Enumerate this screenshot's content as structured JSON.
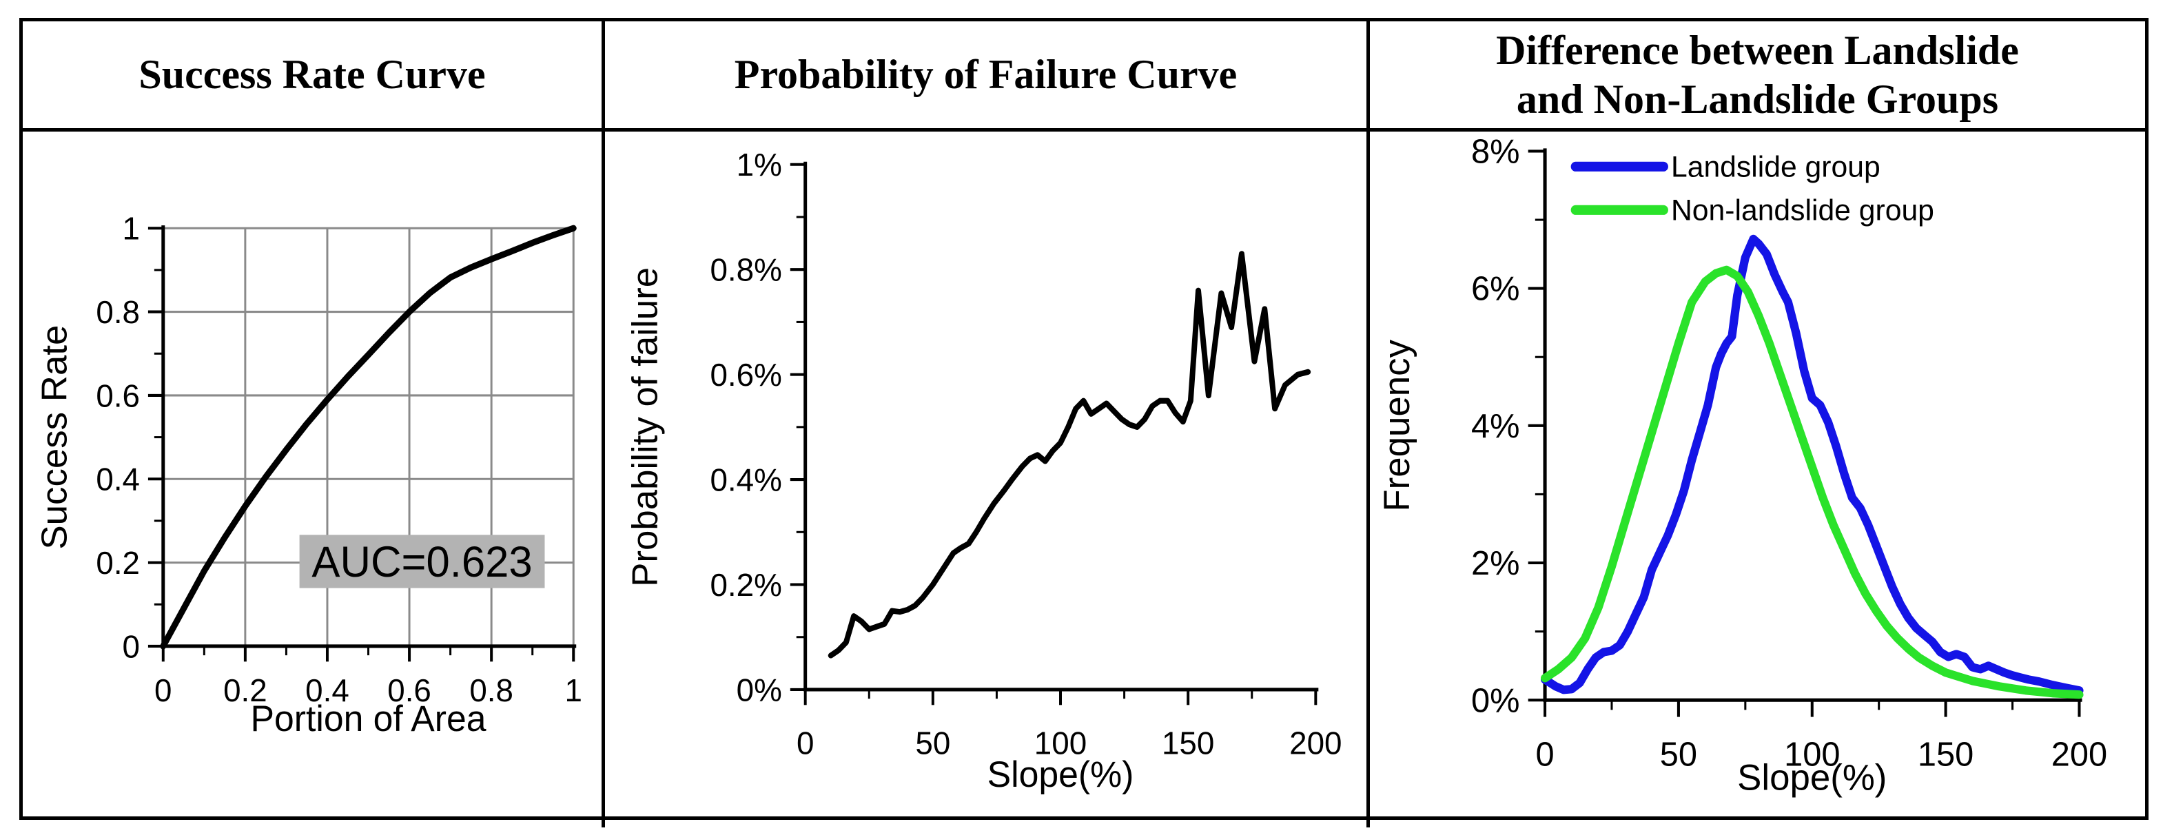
{
  "figure": {
    "panels": [
      {
        "title": "Success Rate Curve"
      },
      {
        "title": "Probability of Failure Curve"
      },
      {
        "title": "Difference between Landslide\nand Non-Landslide Groups"
      }
    ]
  },
  "colors": {
    "axis": "#000000",
    "grid": "#8a8a8a",
    "annotation_bg": "#b3b3b3",
    "landslide_blue": "#1414e6",
    "non_landslide_green": "#2ae22a"
  },
  "chart_data": [
    {
      "type": "line",
      "title": "Success Rate Curve",
      "xlabel": "Portion of Area",
      "ylabel": "Success Rate",
      "xlim": [
        0,
        1
      ],
      "ylim": [
        0,
        1
      ],
      "grid": true,
      "grid_color": "#8a8a8a",
      "x_ticks": {
        "values": [
          0,
          0.2,
          0.4,
          0.6,
          0.8,
          1
        ],
        "labels": [
          "0",
          "0.2",
          "0.4",
          "0.6",
          "0.8",
          "1"
        ]
      },
      "y_ticks": {
        "values": [
          0,
          0.2,
          0.4,
          0.6,
          0.8,
          1
        ],
        "labels": [
          "0",
          "0.2",
          "0.4",
          "0.6",
          "0.8",
          "1"
        ]
      },
      "x_minor": [
        0.1,
        0.3,
        0.5,
        0.7,
        0.9
      ],
      "y_minor": [
        0.1,
        0.3,
        0.5,
        0.7,
        0.9
      ],
      "annotation": {
        "text": "AUC=0.623",
        "bg": "#b3b3b3"
      },
      "series": [
        {
          "name": "Success rate curve",
          "color": "#000000",
          "line_width": 9,
          "points": [
            [
              0,
              0
            ],
            [
              0.05,
              0.09
            ],
            [
              0.1,
              0.18
            ],
            [
              0.15,
              0.26
            ],
            [
              0.2,
              0.335
            ],
            [
              0.25,
              0.405
            ],
            [
              0.3,
              0.47
            ],
            [
              0.35,
              0.532
            ],
            [
              0.4,
              0.59
            ],
            [
              0.45,
              0.645
            ],
            [
              0.5,
              0.697
            ],
            [
              0.55,
              0.75
            ],
            [
              0.6,
              0.8
            ],
            [
              0.65,
              0.845
            ],
            [
              0.7,
              0.882
            ],
            [
              0.75,
              0.906
            ],
            [
              0.8,
              0.926
            ],
            [
              0.85,
              0.945
            ],
            [
              0.9,
              0.965
            ],
            [
              0.95,
              0.983
            ],
            [
              1,
              1
            ]
          ]
        }
      ]
    },
    {
      "type": "line",
      "title": "Probability of Failure Curve",
      "xlabel": "Slope(%)",
      "ylabel": "Probability of failure",
      "xlim": [
        0,
        200
      ],
      "ylim": [
        0,
        1
      ],
      "grid": false,
      "x_ticks": {
        "values": [
          0,
          50,
          100,
          150,
          200
        ],
        "labels": [
          "0",
          "50",
          "100",
          "150",
          "200"
        ]
      },
      "y_ticks": {
        "values": [
          0,
          0.2,
          0.4,
          0.6,
          0.8,
          1
        ],
        "labels": [
          "0%",
          "0.2%",
          "0.4%",
          "0.6%",
          "0.8%",
          "1%"
        ]
      },
      "x_minor": [
        25,
        75,
        125,
        175
      ],
      "y_minor": [
        0.1,
        0.3,
        0.5,
        0.7,
        0.9
      ],
      "series": [
        {
          "name": "Probability of failure",
          "color": "#000000",
          "line_width": 8,
          "points": [
            [
              10,
              0.065
            ],
            [
              13,
              0.075
            ],
            [
              16,
              0.09
            ],
            [
              19,
              0.14
            ],
            [
              22,
              0.13
            ],
            [
              25,
              0.115
            ],
            [
              28,
              0.12
            ],
            [
              31,
              0.125
            ],
            [
              34,
              0.15
            ],
            [
              37,
              0.148
            ],
            [
              40,
              0.152
            ],
            [
              43,
              0.16
            ],
            [
              46,
              0.175
            ],
            [
              50,
              0.2
            ],
            [
              54,
              0.23
            ],
            [
              58,
              0.26
            ],
            [
              61,
              0.27
            ],
            [
              64,
              0.278
            ],
            [
              67,
              0.3
            ],
            [
              70,
              0.325
            ],
            [
              74,
              0.355
            ],
            [
              78,
              0.38
            ],
            [
              81,
              0.4
            ],
            [
              85,
              0.425
            ],
            [
              88,
              0.44
            ],
            [
              91,
              0.447
            ],
            [
              94,
              0.435
            ],
            [
              97,
              0.455
            ],
            [
              100,
              0.47
            ],
            [
              103,
              0.5
            ],
            [
              106,
              0.535
            ],
            [
              109,
              0.55
            ],
            [
              112,
              0.525
            ],
            [
              115,
              0.535
            ],
            [
              118,
              0.545
            ],
            [
              121,
              0.53
            ],
            [
              124,
              0.515
            ],
            [
              127,
              0.505
            ],
            [
              130,
              0.5
            ],
            [
              133,
              0.515
            ],
            [
              136,
              0.54
            ],
            [
              139,
              0.55
            ],
            [
              142,
              0.55
            ],
            [
              145,
              0.527
            ],
            [
              148,
              0.51
            ],
            [
              151,
              0.55
            ],
            [
              154,
              0.76
            ],
            [
              158,
              0.56
            ],
            [
              163,
              0.755
            ],
            [
              167,
              0.69
            ],
            [
              171,
              0.83
            ],
            [
              176,
              0.625
            ],
            [
              180,
              0.725
            ],
            [
              184,
              0.535
            ],
            [
              188,
              0.58
            ],
            [
              193,
              0.6
            ],
            [
              197,
              0.605
            ]
          ]
        }
      ]
    },
    {
      "type": "line",
      "title": "Difference between Landslide and Non-Landslide Groups",
      "xlabel": "Slope(%)",
      "ylabel": "Frequency",
      "xlim": [
        0,
        200
      ],
      "ylim": [
        0,
        8
      ],
      "grid": false,
      "legend": {
        "position": "top-left"
      },
      "x_ticks": {
        "values": [
          0,
          50,
          100,
          150,
          200
        ],
        "labels": [
          "0",
          "50",
          "100",
          "150",
          "200"
        ]
      },
      "y_ticks": {
        "values": [
          0,
          2,
          4,
          6,
          8
        ],
        "labels": [
          "0%",
          "2%",
          "4%",
          "6%",
          "8%"
        ]
      },
      "x_minor": [
        25,
        75,
        125,
        175
      ],
      "y_minor": [
        1,
        3,
        5,
        7
      ],
      "series": [
        {
          "name": "Landslide group",
          "color": "#1414e6",
          "line_width": 12,
          "points": [
            [
              0,
              0.3
            ],
            [
              4,
              0.2
            ],
            [
              7,
              0.15
            ],
            [
              10,
              0.16
            ],
            [
              13,
              0.25
            ],
            [
              16,
              0.45
            ],
            [
              19,
              0.62
            ],
            [
              22,
              0.7
            ],
            [
              25,
              0.72
            ],
            [
              28,
              0.8
            ],
            [
              31,
              1.0
            ],
            [
              34,
              1.25
            ],
            [
              37,
              1.5
            ],
            [
              40,
              1.9
            ],
            [
              43,
              2.15
            ],
            [
              46,
              2.4
            ],
            [
              49,
              2.7
            ],
            [
              52,
              3.05
            ],
            [
              55,
              3.5
            ],
            [
              58,
              3.9
            ],
            [
              61,
              4.3
            ],
            [
              64,
              4.85
            ],
            [
              66,
              5.05
            ],
            [
              68,
              5.2
            ],
            [
              70,
              5.3
            ],
            [
              72,
              5.9
            ],
            [
              75,
              6.45
            ],
            [
              78,
              6.72
            ],
            [
              80,
              6.65
            ],
            [
              83,
              6.5
            ],
            [
              86,
              6.2
            ],
            [
              89,
              5.95
            ],
            [
              91,
              5.8
            ],
            [
              94,
              5.35
            ],
            [
              97,
              4.8
            ],
            [
              100,
              4.4
            ],
            [
              103,
              4.3
            ],
            [
              106,
              4.05
            ],
            [
              109,
              3.7
            ],
            [
              112,
              3.3
            ],
            [
              115,
              2.95
            ],
            [
              118,
              2.8
            ],
            [
              121,
              2.55
            ],
            [
              124,
              2.25
            ],
            [
              127,
              1.95
            ],
            [
              130,
              1.65
            ],
            [
              133,
              1.4
            ],
            [
              136,
              1.2
            ],
            [
              139,
              1.05
            ],
            [
              142,
              0.95
            ],
            [
              145,
              0.85
            ],
            [
              148,
              0.7
            ],
            [
              151,
              0.63
            ],
            [
              154,
              0.67
            ],
            [
              157,
              0.63
            ],
            [
              160,
              0.48
            ],
            [
              163,
              0.45
            ],
            [
              166,
              0.5
            ],
            [
              169,
              0.45
            ],
            [
              172,
              0.4
            ],
            [
              175,
              0.36
            ],
            [
              178,
              0.33
            ],
            [
              181,
              0.3
            ],
            [
              185,
              0.27
            ],
            [
              190,
              0.22
            ],
            [
              195,
              0.18
            ],
            [
              200,
              0.14
            ]
          ]
        },
        {
          "name": "Non-landslide group",
          "color": "#2ae22a",
          "line_width": 12,
          "points": [
            [
              0,
              0.32
            ],
            [
              5,
              0.45
            ],
            [
              10,
              0.62
            ],
            [
              15,
              0.9
            ],
            [
              20,
              1.35
            ],
            [
              25,
              1.95
            ],
            [
              30,
              2.6
            ],
            [
              35,
              3.25
            ],
            [
              40,
              3.9
            ],
            [
              45,
              4.55
            ],
            [
              50,
              5.2
            ],
            [
              55,
              5.8
            ],
            [
              60,
              6.1
            ],
            [
              64,
              6.22
            ],
            [
              68,
              6.27
            ],
            [
              72,
              6.18
            ],
            [
              76,
              5.95
            ],
            [
              80,
              5.6
            ],
            [
              84,
              5.2
            ],
            [
              88,
              4.75
            ],
            [
              92,
              4.3
            ],
            [
              96,
              3.85
            ],
            [
              100,
              3.4
            ],
            [
              104,
              2.95
            ],
            [
              108,
              2.55
            ],
            [
              112,
              2.2
            ],
            [
              116,
              1.85
            ],
            [
              120,
              1.55
            ],
            [
              124,
              1.3
            ],
            [
              128,
              1.08
            ],
            [
              132,
              0.9
            ],
            [
              136,
              0.75
            ],
            [
              140,
              0.62
            ],
            [
              145,
              0.5
            ],
            [
              150,
              0.4
            ],
            [
              155,
              0.34
            ],
            [
              160,
              0.28
            ],
            [
              165,
              0.24
            ],
            [
              170,
              0.2
            ],
            [
              175,
              0.17
            ],
            [
              180,
              0.14
            ],
            [
              185,
              0.12
            ],
            [
              190,
              0.1
            ],
            [
              195,
              0.09
            ],
            [
              200,
              0.08
            ]
          ]
        }
      ]
    }
  ]
}
